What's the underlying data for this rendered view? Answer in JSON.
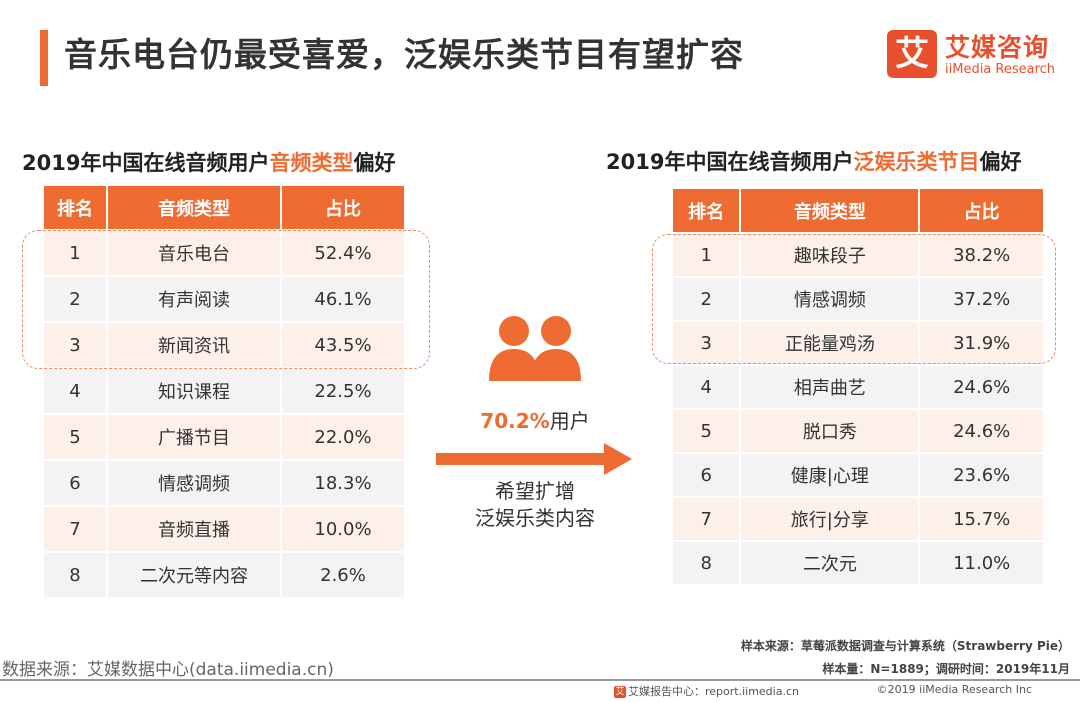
{
  "header": {
    "title": "音乐电台仍最受喜爱，泛娱乐类节目有望扩容",
    "logo_mark": "艾",
    "logo_cn": "艾媒咨询",
    "logo_en": "iiMedia Research"
  },
  "chart_data": [
    {
      "type": "table",
      "title_prefix": "2019年中国在线音频用户",
      "title_highlight": "音频类型",
      "title_suffix": "偏好",
      "columns": [
        "排名",
        "音频类型",
        "占比"
      ],
      "rows": [
        [
          "1",
          "音乐电台",
          "52.4%"
        ],
        [
          "2",
          "有声阅读",
          "46.1%"
        ],
        [
          "3",
          "新闻资讯",
          "43.5%"
        ],
        [
          "4",
          "知识课程",
          "22.5%"
        ],
        [
          "5",
          "广播节目",
          "22.0%"
        ],
        [
          "6",
          "情感调频",
          "18.3%"
        ],
        [
          "7",
          "音频直播",
          "10.0%"
        ],
        [
          "8",
          "二次元等内容",
          "2.6%"
        ]
      ],
      "highlighted_ranks": [
        1,
        2,
        3
      ]
    },
    {
      "type": "table",
      "title_prefix": "2019年中国在线音频用户",
      "title_highlight": "泛娱乐类节目",
      "title_suffix": "偏好",
      "columns": [
        "排名",
        "音频类型",
        "占比"
      ],
      "rows": [
        [
          "1",
          "趣味段子",
          "38.2%"
        ],
        [
          "2",
          "情感调频",
          "37.2%"
        ],
        [
          "3",
          "正能量鸡汤",
          "31.9%"
        ],
        [
          "4",
          "相声曲艺",
          "24.6%"
        ],
        [
          "5",
          "脱口秀",
          "24.6%"
        ],
        [
          "6",
          "健康|心理",
          "23.6%"
        ],
        [
          "7",
          "旅行|分享",
          "15.7%"
        ],
        [
          "8",
          "二次元",
          "11.0%"
        ]
      ],
      "highlighted_ranks": [
        1,
        2,
        3
      ]
    }
  ],
  "middle": {
    "percent": "70.2%",
    "percent_suffix": "用户",
    "line1": "希望扩增",
    "line2": "泛娱乐类内容"
  },
  "colors": {
    "accent": "#ee6b31",
    "row_light": "#fdf0ea",
    "row_gray": "#f3f3f3"
  },
  "source": {
    "left": "数据来源：艾媒数据中心(data.iimedia.cn)",
    "sample_source": "样本来源：草莓派数据调查与计算系统（Strawberry Pie）",
    "sample_size": "样本量：N=1889；调研时间：2019年11月",
    "footer_left": "艾媒报告中心：report.iimedia.cn",
    "footer_right": "©2019  iiMedia Research  Inc"
  }
}
